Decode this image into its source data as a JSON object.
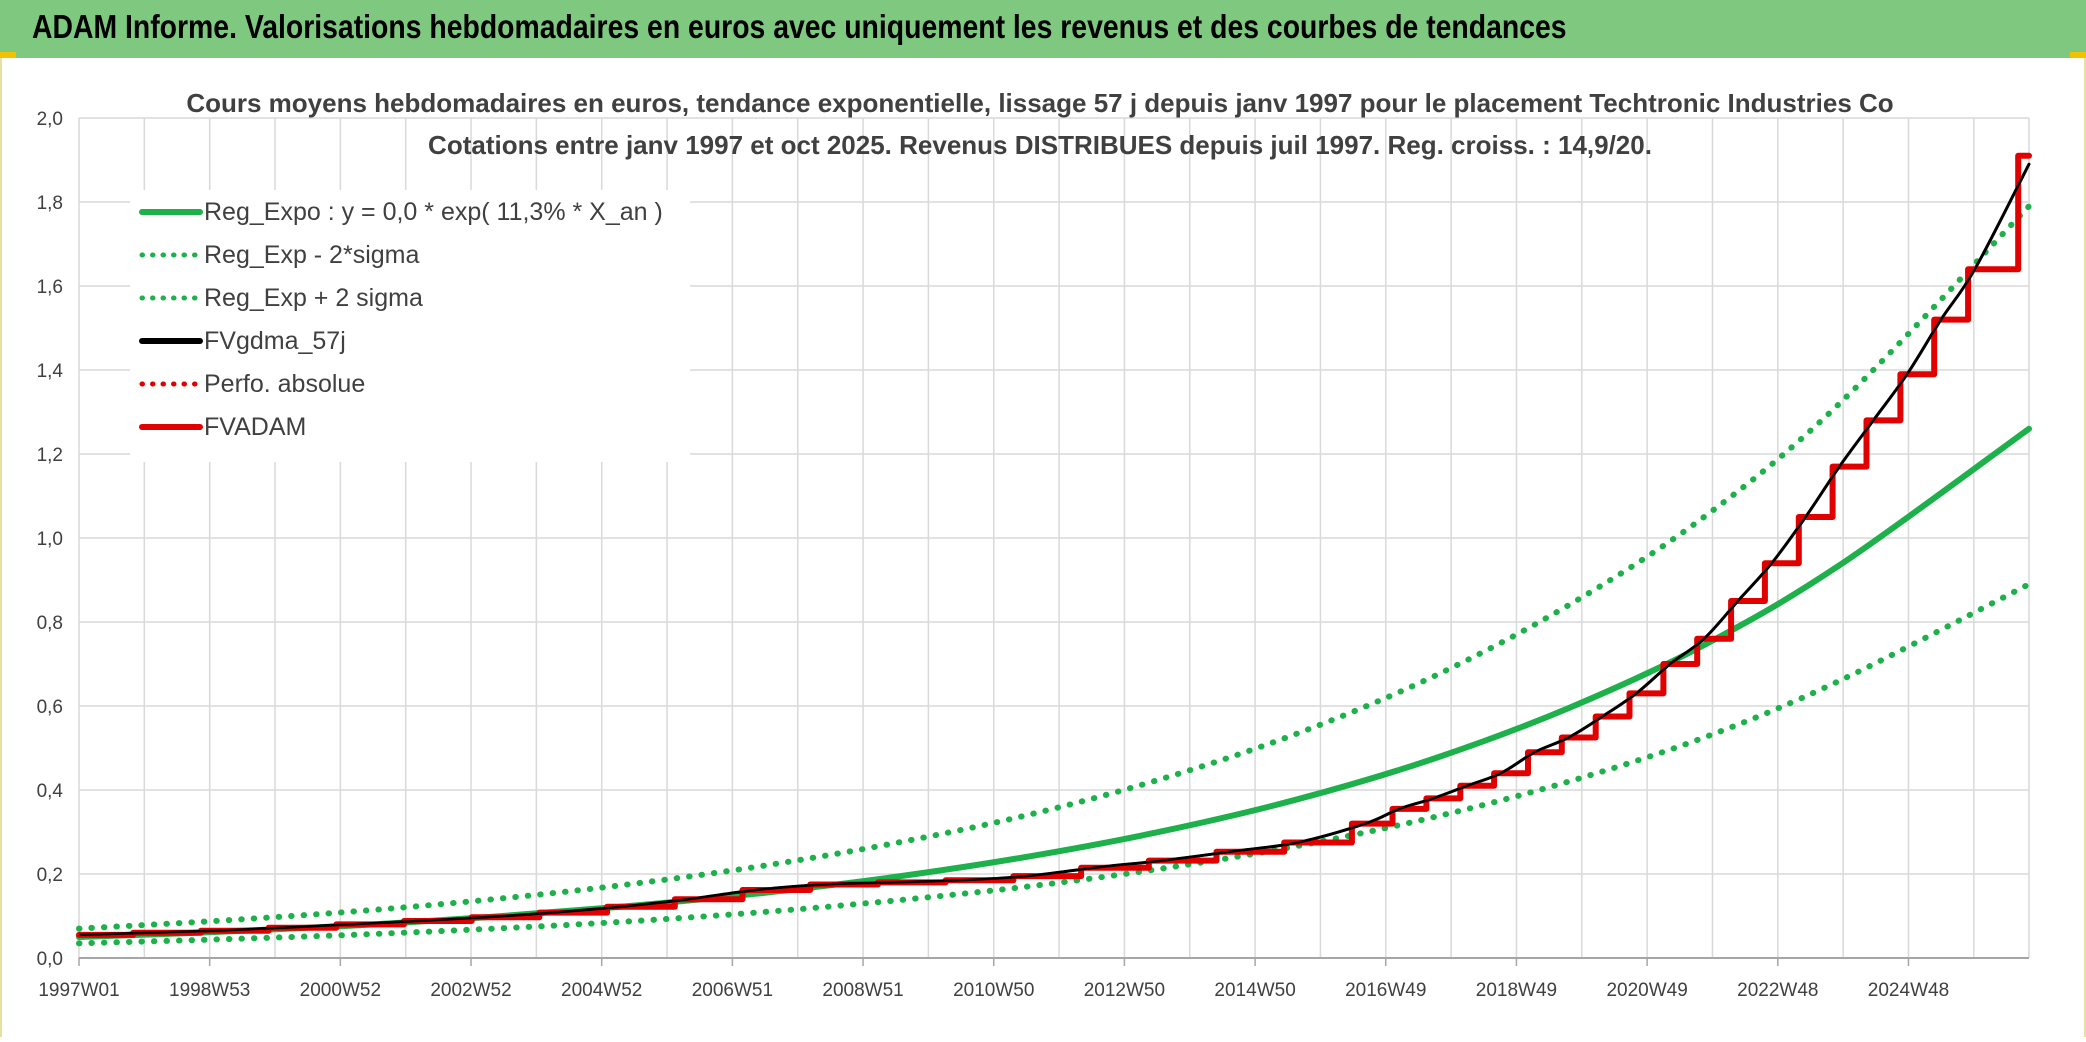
{
  "header": {
    "title": "ADAM Informe. Valorisations hebdomadaires en euros avec uniquement les revenus et des courbes de tendances"
  },
  "chart_data": {
    "type": "line",
    "title": "Cours moyens hebdomadaires en euros, tendance exponentielle, lissage 57 j depuis janv 1997 pour le placement Techtronic Industries Co",
    "subtitle": "Cotations entre janv 1997 et oct 2025. Revenus DISTRIBUES depuis juil 1997. Reg. croiss. : 14,9/20.",
    "xlabel": "",
    "ylabel": "",
    "x_ticks": [
      "1997W01",
      "1998W53",
      "2000W52",
      "2002W52",
      "2004W52",
      "2006W51",
      "2008W51",
      "2010W50",
      "2012W50",
      "2014W50",
      "2016W49",
      "2018W49",
      "2020W49",
      "2022W48",
      "2024W48"
    ],
    "x_range": [
      1997.0,
      2025.8
    ],
    "ylim": [
      0,
      2.0
    ],
    "y_ticks": [
      "0,0",
      "0,2",
      "0,4",
      "0,6",
      "0,8",
      "1,0",
      "1,2",
      "1,4",
      "1,6",
      "1,8",
      "2,0"
    ],
    "grid": true,
    "legend_position": "top-left",
    "legend": [
      {
        "label": "Reg_Expo : y = 0,0 * exp( 11,3% *  X_an )",
        "color": "#1db04b",
        "style": "solid"
      },
      {
        "label": "Reg_Exp - 2*sigma",
        "color": "#1db04b",
        "style": "dotted"
      },
      {
        "label": "Reg_Exp + 2 sigma",
        "color": "#1db04b",
        "style": "dotted"
      },
      {
        "label": "FVgdma_57j",
        "color": "#000000",
        "style": "solid"
      },
      {
        "label": "Perfo. absolue",
        "color": "#e00000",
        "style": "dotted"
      },
      {
        "label": "FVADAM",
        "color": "#e00000",
        "style": "solid"
      }
    ],
    "series": [
      {
        "name": "Reg_Expo : y = 0,0 * exp( 11,3% *  X_an )",
        "color": "#1db04b",
        "x": [
          1997,
          1999,
          2001,
          2003,
          2005,
          2007,
          2009,
          2011,
          2013,
          2015,
          2017,
          2019,
          2021,
          2023,
          2025.8
        ],
        "values": [
          0.05,
          0.062,
          0.077,
          0.097,
          0.122,
          0.153,
          0.192,
          0.241,
          0.302,
          0.378,
          0.474,
          0.595,
          0.745,
          0.935,
          1.26
        ]
      },
      {
        "name": "Reg_Exp - 2*sigma",
        "color": "#1db04b",
        "x": [
          1997,
          1999,
          2001,
          2003,
          2005,
          2007,
          2009,
          2011,
          2013,
          2015,
          2017,
          2019,
          2021,
          2023,
          2025.8
        ],
        "values": [
          0.035,
          0.044,
          0.055,
          0.069,
          0.086,
          0.108,
          0.136,
          0.17,
          0.213,
          0.267,
          0.335,
          0.42,
          0.525,
          0.66,
          0.89
        ]
      },
      {
        "name": "Reg_Exp + 2 sigma",
        "color": "#1db04b",
        "x": [
          1997,
          1999,
          2001,
          2003,
          2005,
          2007,
          2009,
          2011,
          2013,
          2015,
          2017,
          2019,
          2021,
          2023,
          2025.8
        ],
        "values": [
          0.07,
          0.088,
          0.11,
          0.138,
          0.173,
          0.217,
          0.272,
          0.34,
          0.427,
          0.535,
          0.67,
          0.84,
          1.05,
          1.32,
          1.79
        ]
      },
      {
        "name": "FVgdma_57j",
        "color": "#000000",
        "x": [
          1997.0,
          1998.0,
          1999.0,
          2000.0,
          2001.0,
          2002.0,
          2003.0,
          2004.0,
          2005.0,
          2006.0,
          2007.0,
          2008.0,
          2009.0,
          2010.0,
          2011.0,
          2012.0,
          2013.0,
          2014.0,
          2015.0,
          2016.0,
          2016.5,
          2017.0,
          2017.5,
          2018.0,
          2018.5,
          2019.0,
          2019.5,
          2020.0,
          2020.5,
          2021.0,
          2021.5,
          2022.0,
          2022.5,
          2023.0,
          2023.5,
          2024.0,
          2024.5,
          2025.0,
          2025.8
        ],
        "values": [
          0.055,
          0.06,
          0.065,
          0.072,
          0.08,
          0.088,
          0.097,
          0.108,
          0.122,
          0.14,
          0.162,
          0.175,
          0.18,
          0.185,
          0.195,
          0.215,
          0.232,
          0.253,
          0.275,
          0.32,
          0.355,
          0.38,
          0.41,
          0.44,
          0.49,
          0.525,
          0.575,
          0.63,
          0.7,
          0.76,
          0.85,
          0.94,
          1.05,
          1.17,
          1.28,
          1.39,
          1.52,
          1.64,
          1.89
        ]
      },
      {
        "name": "FVADAM",
        "color": "#e00000",
        "x": [
          1997.0,
          1998.0,
          1999.0,
          2000.0,
          2001.0,
          2002.0,
          2003.0,
          2004.0,
          2005.0,
          2006.0,
          2007.0,
          2008.0,
          2009.0,
          2010.0,
          2011.0,
          2012.0,
          2013.0,
          2014.0,
          2015.0,
          2016.0,
          2016.5,
          2017.0,
          2017.5,
          2018.0,
          2018.5,
          2019.0,
          2019.5,
          2020.0,
          2020.5,
          2021.0,
          2021.5,
          2022.0,
          2022.5,
          2023.0,
          2023.5,
          2024.0,
          2024.5,
          2025.0,
          2025.8
        ],
        "values": [
          0.055,
          0.06,
          0.065,
          0.072,
          0.08,
          0.088,
          0.097,
          0.108,
          0.122,
          0.14,
          0.162,
          0.175,
          0.18,
          0.185,
          0.195,
          0.215,
          0.232,
          0.253,
          0.275,
          0.32,
          0.355,
          0.38,
          0.41,
          0.44,
          0.49,
          0.525,
          0.575,
          0.63,
          0.7,
          0.76,
          0.85,
          0.94,
          1.05,
          1.17,
          1.28,
          1.39,
          1.52,
          1.64,
          1.91
        ]
      }
    ]
  }
}
